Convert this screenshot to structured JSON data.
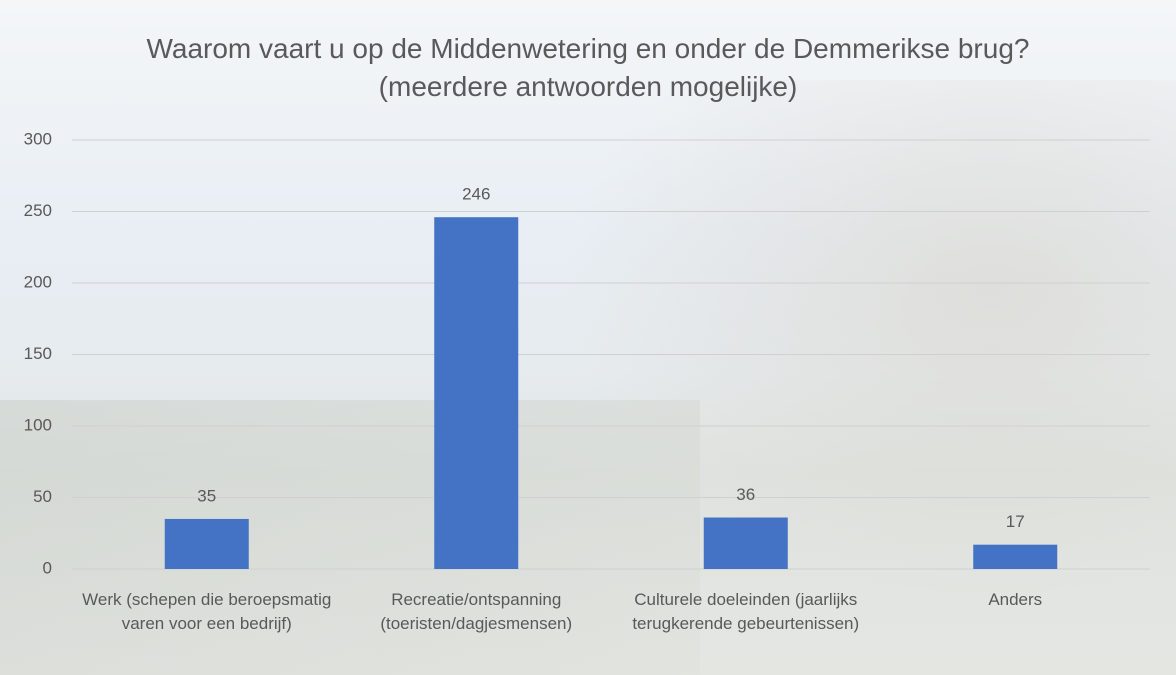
{
  "chart_data": {
    "type": "bar",
    "title": "Waarom vaart u op de Middenwetering en onder de Demmerikse brug? (meerdere antwoorden mogelijke)",
    "categories": [
      "Werk (schepen die beroepsmatig varen voor een bedrijf)",
      "Recreatie/ontspanning (toeristen/dagjesmensen)",
      "Culturele doeleinden (jaarlijks terugkerende gebeurtenissen)",
      "Anders"
    ],
    "values": [
      35,
      246,
      36,
      17
    ],
    "color": "#4472c4",
    "ylim": [
      0,
      300
    ],
    "yticks": [
      0,
      50,
      100,
      150,
      200,
      250,
      300
    ],
    "grid": true
  }
}
